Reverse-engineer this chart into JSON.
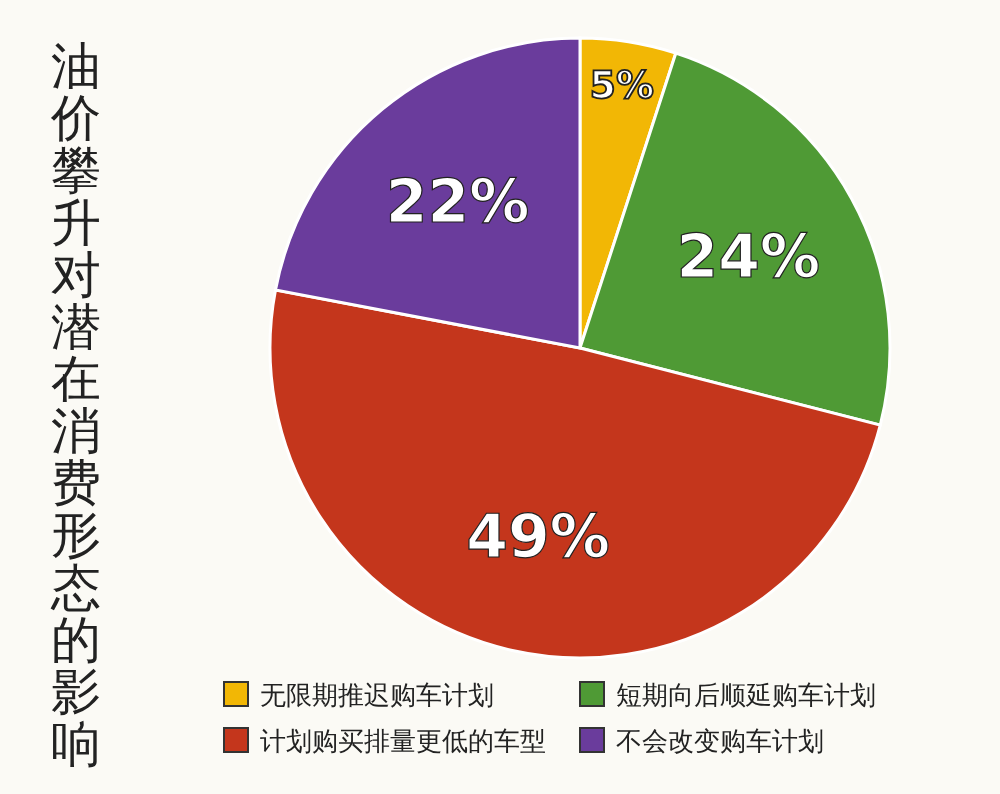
{
  "chart_data": {
    "type": "pie",
    "title": "油价攀升对潜在消费形态的影响",
    "categories": [
      "无限期推迟购车计划",
      "短期向后顺延购车计划",
      "计划购买排量更低的车型",
      "不会改变购车计划"
    ],
    "values": [
      5,
      24,
      49,
      22
    ],
    "colors": [
      "#f2b705",
      "#4f9a35",
      "#c4361c",
      "#6a3c9c"
    ],
    "value_labels": [
      "5%",
      "24%",
      "49%",
      "22%"
    ],
    "legend": "bottom"
  }
}
